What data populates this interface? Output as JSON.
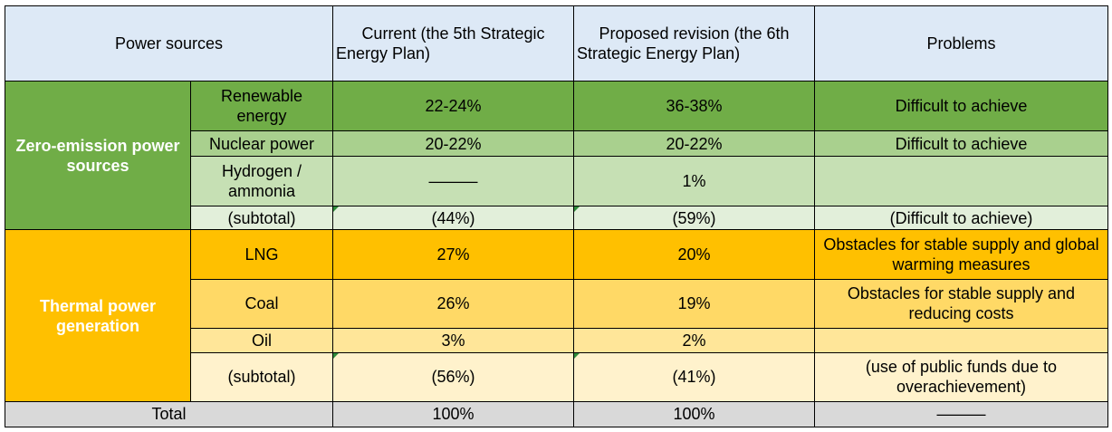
{
  "header": {
    "col1": "Power sources",
    "col2": "Current (the 5th Strategic Energy Plan)",
    "col3": "Proposed revision (the 6th Strategic Energy Plan)",
    "col4": "Problems"
  },
  "groups": {
    "zero_emission": "Zero-emission power sources",
    "thermal": "Thermal power generation"
  },
  "rows": [
    {
      "source": "Renewable energy",
      "current": "22-24%",
      "proposed": "36-38%",
      "problem": "Difficult to achieve"
    },
    {
      "source": "Nuclear power",
      "current": "20-22%",
      "proposed": "20-22%",
      "problem": "Difficult to achieve"
    },
    {
      "source": "Hydrogen / ammonia",
      "current": "———",
      "proposed": "1%",
      "problem": ""
    },
    {
      "source": "(subtotal)",
      "current": "(44%)",
      "proposed": "(59%)",
      "problem": "(Difficult to achieve)"
    },
    {
      "source": "LNG",
      "current": "27%",
      "proposed": "20%",
      "problem": "Obstacles for stable supply and global warming measures"
    },
    {
      "source": "Coal",
      "current": "26%",
      "proposed": "19%",
      "problem": "Obstacles for stable supply and reducing costs"
    },
    {
      "source": "Oil",
      "current": "3%",
      "proposed": "2%",
      "problem": ""
    },
    {
      "source": "(subtotal)",
      "current": "(56%)",
      "proposed": "(41%)",
      "problem": "(use of public funds due to overachievement)"
    }
  ],
  "total": {
    "label": "Total",
    "current": "100%",
    "proposed": "100%",
    "problem": "———"
  }
}
